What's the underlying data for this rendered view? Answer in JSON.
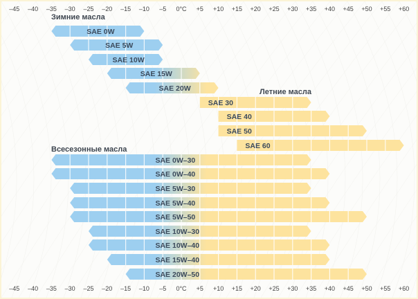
{
  "chart_data": {
    "type": "bar",
    "subtype": "range-bar",
    "title": "",
    "xlabel": "",
    "ylabel": "",
    "x_unit": "°C",
    "xlim": [
      -45,
      60
    ],
    "x_ticks": [
      -45,
      -40,
      -35,
      -30,
      -25,
      -20,
      -15,
      -10,
      -5,
      0,
      5,
      10,
      15,
      20,
      25,
      30,
      35,
      40,
      45,
      50,
      55,
      60
    ],
    "x_tick_labels": [
      "–45",
      "–40",
      "–35",
      "–30",
      "–25",
      "–20",
      "–15",
      "–10",
      "–5",
      "0°C",
      "+5",
      "+10",
      "+15",
      "+20",
      "+25",
      "+30",
      "+35",
      "+40",
      "+45",
      "+50",
      "+55",
      "+60"
    ],
    "axis_positions": [
      "top",
      "bottom"
    ],
    "grid": false,
    "colors": {
      "winter": "#9dcff0",
      "summer": "#fde39e",
      "label": "#3b4a5c",
      "frame": "#fbf3d6"
    },
    "groups": [
      {
        "name": "Зимние масла",
        "season": "winter",
        "series": [
          {
            "name": "SAE 0W",
            "min": -35,
            "max": -10
          },
          {
            "name": "SAE 5W",
            "min": -30,
            "max": -5
          },
          {
            "name": "SAE 10W",
            "min": -25,
            "max": -5
          },
          {
            "name": "SAE 15W",
            "min": -20,
            "max": 5
          },
          {
            "name": "SAE 20W",
            "min": -15,
            "max": 10
          }
        ]
      },
      {
        "name": "Летние масла",
        "season": "summer",
        "series": [
          {
            "name": "SAE 30",
            "min": 5,
            "max": 35
          },
          {
            "name": "SAE 40",
            "min": 10,
            "max": 40
          },
          {
            "name": "SAE 50",
            "min": 10,
            "max": 50
          },
          {
            "name": "SAE 60",
            "min": 15,
            "max": 60
          }
        ]
      },
      {
        "name": "Всесезонные масла",
        "season": "all",
        "series": [
          {
            "name": "SAE 0W–30",
            "min": -35,
            "max": 35
          },
          {
            "name": "SAE 0W–40",
            "min": -35,
            "max": 40
          },
          {
            "name": "SAE 5W–30",
            "min": -30,
            "max": 35
          },
          {
            "name": "SAE 5W–40",
            "min": -30,
            "max": 40
          },
          {
            "name": "SAE 5W–50",
            "min": -30,
            "max": 50
          },
          {
            "name": "SAE 10W–30",
            "min": -25,
            "max": 35
          },
          {
            "name": "SAE 10W–40",
            "min": -25,
            "max": 40
          },
          {
            "name": "SAE 15W–40",
            "min": -20,
            "max": 40
          },
          {
            "name": "SAE 20W–50",
            "min": -15,
            "max": 50
          }
        ]
      }
    ]
  }
}
